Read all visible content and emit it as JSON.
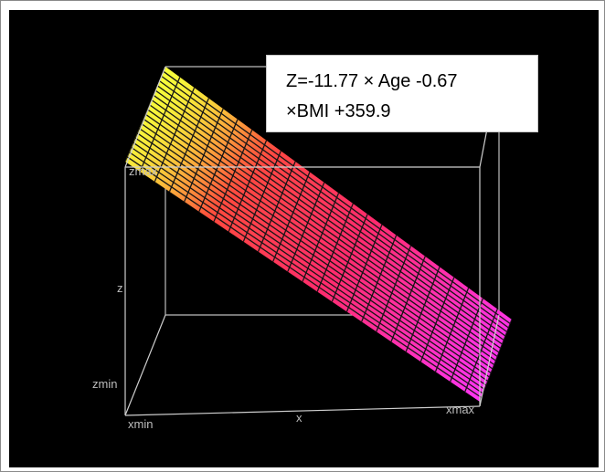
{
  "equation": {
    "line1": "Z=-11.77 × Age -0.67",
    "line2": "×BMI +359.9"
  },
  "axis_labels": {
    "zmax": "zmax",
    "z": "z",
    "zmin": "zmin",
    "xmin": "xmin",
    "x": "x",
    "xmax": "xmax"
  },
  "colors": {
    "background": "#000000",
    "box_edges": "#cfcfcf",
    "surface_low": "#ff2a55",
    "surface_high": "#f7ff3a",
    "surface_far": "#ff33ff",
    "mesh": "#111111"
  }
}
